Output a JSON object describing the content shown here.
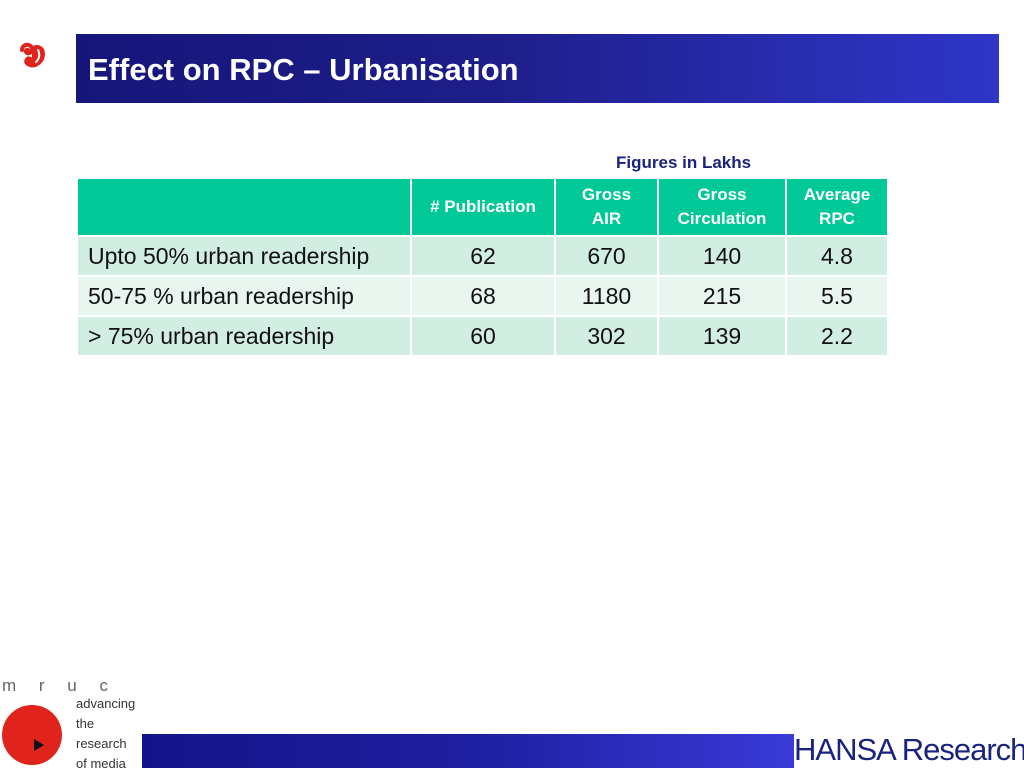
{
  "slide": {
    "title": "Effect on RPC – Urbanisation",
    "figures_note": "Figures in Lakhs"
  },
  "table": {
    "headers": [
      "",
      "# Publication",
      "Gross AIR",
      "Gross Circulation",
      "Average RPC"
    ],
    "header_lines": {
      "publication": "# Publication",
      "gross_air_1": "Gross",
      "gross_air_2": "AIR",
      "gross_circulation_1": "Gross",
      "gross_circulation_2": "Circulation",
      "average_rpc_1": "Average",
      "average_rpc_2": "RPC"
    },
    "rows": [
      {
        "label": "Upto 50% urban readership",
        "publication": "62",
        "gross_air": "670",
        "gross_circulation": "140",
        "average_rpc": "4.8"
      },
      {
        "label": "50-75 % urban readership",
        "publication": "68",
        "gross_air": "1180",
        "gross_circulation": "215",
        "average_rpc": "5.5"
      },
      {
        "label": "> 75% urban readership",
        "publication": "60",
        "gross_air": "302",
        "gross_circulation": "139",
        "average_rpc": "2.2"
      }
    ]
  },
  "footer": {
    "mruc_letters": "m r u c",
    "mruc_tagline": [
      "advancing",
      "the",
      "research",
      "of media"
    ],
    "hansa_logo_text": "HANSA Research"
  },
  "colors": {
    "title_bar": "#1e1e8a",
    "table_header": "#00c896",
    "row_odd": "#d2ede1",
    "row_even": "#e9f6f0",
    "logo_red": "#e0231b",
    "note_text": "#1a237e"
  },
  "icons": {
    "top_logo": "bird-logo-icon",
    "mruc_logo": "mruc-play-logo-icon"
  }
}
